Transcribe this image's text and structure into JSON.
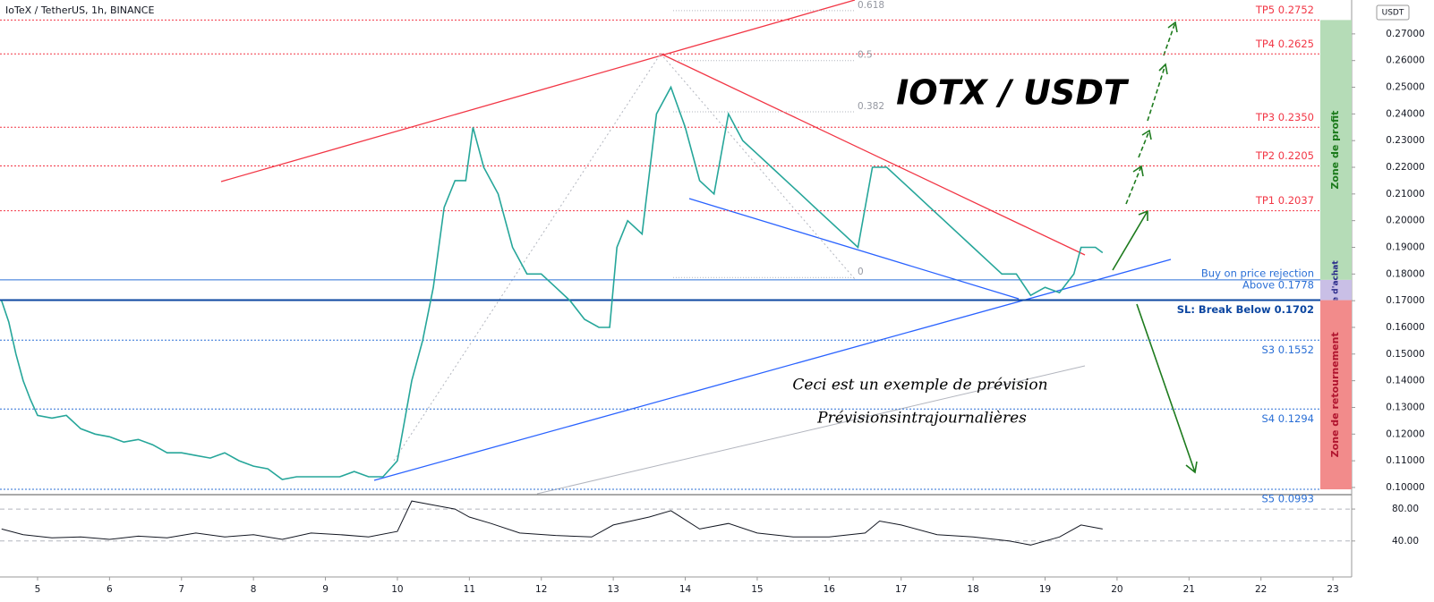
{
  "chart_data": [
    {
      "type": "line",
      "title": "IoTeX / TetherUS, 1h, BINANCE",
      "heading": "IOTX / USDT",
      "annotations": [
        "Ceci est un exemple de prévision",
        "Prévisionsintrajournalières"
      ],
      "currency_badge": "USDT",
      "x": [
        4.5,
        4.6,
        4.7,
        4.8,
        4.9,
        5.0,
        5.2,
        5.4,
        5.6,
        5.8,
        6.0,
        6.2,
        6.4,
        6.6,
        6.8,
        7.0,
        7.2,
        7.4,
        7.6,
        7.8,
        8.0,
        8.2,
        8.4,
        8.6,
        8.8,
        9.0,
        9.2,
        9.4,
        9.6,
        9.8,
        10.0,
        10.1,
        10.2,
        10.35,
        10.5,
        10.65,
        10.8,
        10.95,
        11.05,
        11.2,
        11.4,
        11.6,
        11.8,
        12.0,
        12.2,
        12.4,
        12.6,
        12.8,
        12.95,
        13.05,
        13.2,
        13.4,
        13.6,
        13.8,
        14.0,
        14.2,
        14.4,
        14.6,
        14.8,
        15.0,
        15.2,
        15.4,
        15.6,
        15.8,
        16.0,
        16.2,
        16.4,
        16.6,
        16.8,
        17.0,
        17.2,
        17.4,
        17.6,
        17.8,
        18.0,
        18.2,
        18.4,
        18.6,
        18.8,
        19.0,
        19.2,
        19.4,
        19.5,
        19.7,
        19.8
      ],
      "series": [
        {
          "color": "#26a69a",
          "values": [
            0.17,
            0.162,
            0.15,
            0.14,
            0.133,
            0.127,
            0.126,
            0.127,
            0.122,
            0.12,
            0.119,
            0.117,
            0.118,
            0.116,
            0.113,
            0.113,
            0.112,
            0.111,
            0.113,
            0.11,
            0.108,
            0.107,
            0.103,
            0.104,
            0.104,
            0.104,
            0.104,
            0.106,
            0.104,
            0.104,
            0.11,
            0.125,
            0.14,
            0.155,
            0.175,
            0.205,
            0.215,
            0.215,
            0.235,
            0.22,
            0.21,
            0.19,
            0.18,
            0.18,
            0.175,
            0.17,
            0.163,
            0.16,
            0.16,
            0.19,
            0.2,
            0.195,
            0.24,
            0.25,
            0.235,
            0.215,
            0.21,
            0.24,
            0.23,
            0.225,
            0.22,
            0.215,
            0.21,
            0.205,
            0.2,
            0.195,
            0.19,
            0.22,
            0.22,
            0.215,
            0.21,
            0.205,
            0.2,
            0.195,
            0.19,
            0.185,
            0.18,
            0.18,
            0.172,
            0.175,
            0.173,
            0.18,
            0.19,
            0.19,
            0.188
          ]
        }
      ],
      "xlim": [
        4.478,
        23.26
      ],
      "xticks": [
        5,
        6,
        7,
        8,
        9,
        10,
        11,
        12,
        13,
        14,
        15,
        16,
        17,
        18,
        19,
        20,
        21,
        22,
        23
      ],
      "ylim": [
        0.0973,
        0.2827
      ],
      "yticks": [
        {
          "value": 0.1,
          "label": "0.10000"
        },
        {
          "value": 0.11,
          "label": "0.11000"
        },
        {
          "value": 0.12,
          "label": "0.12000"
        },
        {
          "value": 0.13,
          "label": "0.13000"
        },
        {
          "value": 0.14,
          "label": "0.14000"
        },
        {
          "value": 0.15,
          "label": "0.15000"
        },
        {
          "value": 0.16,
          "label": "0.16000"
        },
        {
          "value": 0.17,
          "label": "0.17000"
        },
        {
          "value": 0.18,
          "label": "0.18000"
        },
        {
          "value": 0.19,
          "label": "0.19000"
        },
        {
          "value": 0.2,
          "label": "0.20000"
        },
        {
          "value": 0.21,
          "label": "0.21000"
        },
        {
          "value": 0.22,
          "label": "0.22000"
        },
        {
          "value": 0.23,
          "label": "0.23000"
        },
        {
          "value": 0.24,
          "label": "0.24000"
        },
        {
          "value": 0.25,
          "label": "0.25000"
        },
        {
          "value": 0.26,
          "label": "0.26000"
        },
        {
          "value": 0.27,
          "label": "0.27000"
        }
      ],
      "levels": [
        {
          "value": 0.2752,
          "labels": [
            "TP5 0.2752"
          ],
          "color": "#f23645",
          "side": "above"
        },
        {
          "value": 0.2625,
          "labels": [
            "TP4 0.2625"
          ],
          "color": "#f23645",
          "side": "above"
        },
        {
          "value": 0.235,
          "labels": [
            "TP3 0.2350"
          ],
          "color": "#f23645",
          "side": "above"
        },
        {
          "value": 0.2205,
          "labels": [
            "TP2 0.2205"
          ],
          "color": "#f23645",
          "side": "above"
        },
        {
          "value": 0.2037,
          "labels": [
            "TP1 0.2037"
          ],
          "color": "#f23645",
          "side": "above"
        },
        {
          "value": 0.1778,
          "labels": [
            "Buy on price rejection",
            "Above 0.1778"
          ],
          "color": "#2a6fd6",
          "side": "both"
        },
        {
          "value": 0.1702,
          "labels": [
            "SL: Break Below 0.1702"
          ],
          "color": "#0d47a1",
          "side": "below"
        },
        {
          "value": 0.1552,
          "labels": [
            "S3 0.1552"
          ],
          "color": "#2a6fd6",
          "side": "below"
        },
        {
          "value": 0.1294,
          "labels": [
            "S4 0.1294"
          ],
          "color": "#2a6fd6",
          "side": "below"
        },
        {
          "value": 0.0993,
          "labels": [
            "S5 0.0993"
          ],
          "color": "#2a6fd6",
          "side": "below"
        }
      ],
      "zones": [
        {
          "label": "Zone de profit",
          "from": 0.1778,
          "to": 0.2752,
          "color": "#b5dcb7"
        },
        {
          "label": "Zone d'achat",
          "from": 0.1702,
          "to": 0.1778,
          "color": "#c9bfe6"
        },
        {
          "label": "Zone de retournement",
          "from": 0.0993,
          "to": 0.1702,
          "color": "#f28b8b"
        }
      ],
      "fib": [
        {
          "label": "0.618",
          "value": 0.2787
        },
        {
          "label": "0.5",
          "value": 0.26
        },
        {
          "label": "0.382",
          "value": 0.2408
        },
        {
          "label": "0",
          "value": 0.1787
        }
      ]
    },
    {
      "type": "line",
      "x": [
        4.5,
        4.8,
        5.2,
        5.6,
        6.0,
        6.4,
        6.8,
        7.2,
        7.6,
        8.0,
        8.4,
        8.8,
        9.2,
        9.6,
        10.0,
        10.2,
        10.5,
        10.8,
        11.0,
        11.3,
        11.7,
        12.2,
        12.7,
        13.0,
        13.5,
        13.8,
        14.2,
        14.6,
        15.0,
        15.5,
        16.0,
        16.5,
        16.7,
        17.0,
        17.5,
        18.0,
        18.5,
        18.8,
        19.2,
        19.5,
        19.8
      ],
      "series": [
        {
          "color": "#131722",
          "values": [
            55,
            48,
            44,
            45,
            42,
            46,
            44,
            50,
            45,
            48,
            42,
            50,
            48,
            45,
            52,
            90,
            85,
            80,
            70,
            62,
            50,
            47,
            45,
            60,
            70,
            78,
            55,
            62,
            50,
            45,
            45,
            50,
            65,
            60,
            48,
            45,
            40,
            35,
            45,
            60,
            55
          ]
        }
      ],
      "xlim": [
        4.478,
        23.26
      ],
      "ylim": [
        -5,
        98
      ],
      "yticks": [
        {
          "value": 80,
          "label": "80.00"
        },
        {
          "value": 40,
          "label": "40.00"
        }
      ]
    }
  ]
}
